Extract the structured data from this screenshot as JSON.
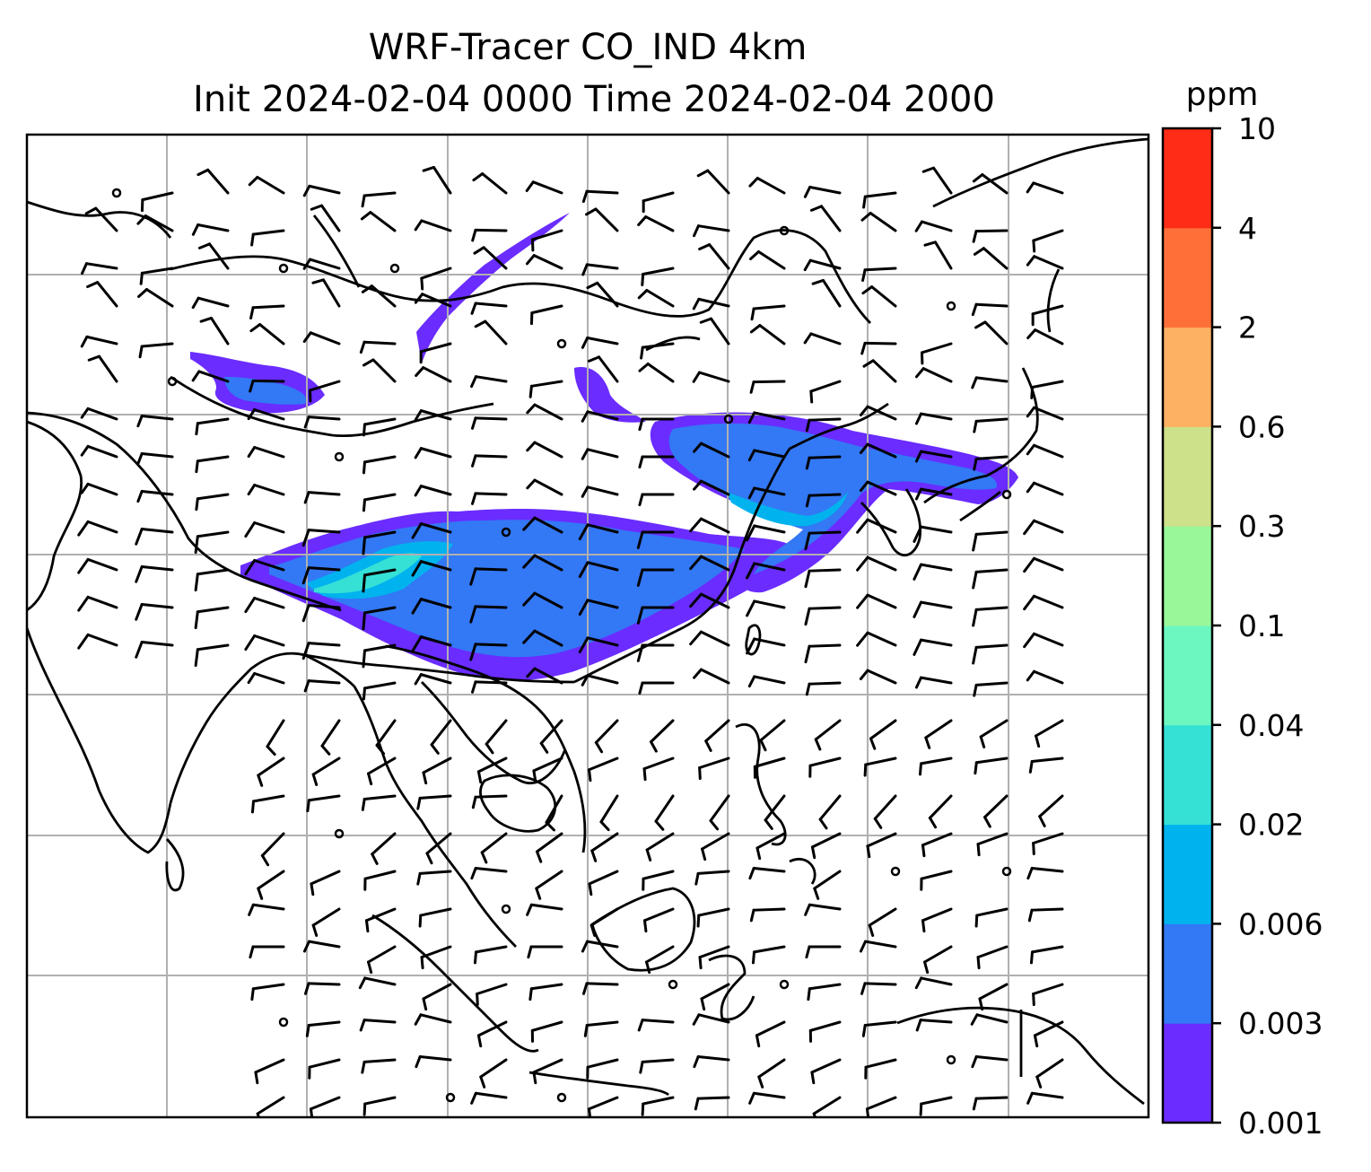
{
  "title": {
    "line1": "WRF-Tracer CO_IND 4km",
    "line2": "Init 2024-02-04 0000 Time 2024-02-04 2000"
  },
  "colorbar": {
    "units": "ppm",
    "levels": [
      "0.001",
      "0.003",
      "0.006",
      "0.02",
      "0.04",
      "0.1",
      "0.3",
      "0.6",
      "2",
      "4",
      "10"
    ],
    "colors": [
      "#6a2cff",
      "#3378f5",
      "#00b3ee",
      "#35e0d5",
      "#6cf7c0",
      "#99f799",
      "#cde08a",
      "#fdb163",
      "#ff7038",
      "#ff2c18"
    ]
  },
  "map": {
    "plume_colors": {
      "outer": "#6a2cff",
      "mid": "#3378f5",
      "inner": "#00b3ee",
      "core": "#35e0d5"
    },
    "gridline_color": "#b0b0b0",
    "coastline_color": "#000000",
    "wind_barb_color": "#000000"
  }
}
